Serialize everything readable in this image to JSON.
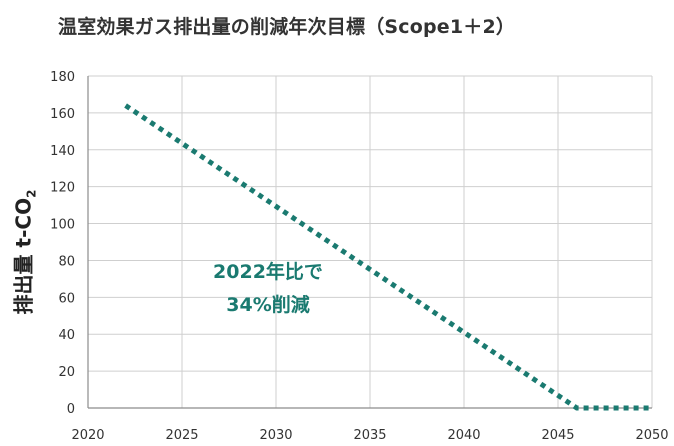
{
  "chart_data": {
    "type": "line",
    "title": "温室効果ガス排出量の削減年次目標（Scope1＋2）",
    "ylabel_main": "排出量 t-CO",
    "ylabel_sub": "2",
    "xlabel": "",
    "xlim": [
      2020,
      2050
    ],
    "ylim": [
      0,
      180
    ],
    "x_ticks": [
      2020,
      2025,
      2030,
      2035,
      2040,
      2045,
      2050
    ],
    "y_ticks": [
      0,
      20,
      40,
      60,
      80,
      100,
      120,
      140,
      160,
      180
    ],
    "grid": true,
    "series": [
      {
        "x": [
          2022,
          2046,
          2050
        ],
        "y": [
          164,
          0,
          0
        ],
        "style": "dotted",
        "color": "#1a7a70"
      }
    ],
    "annotations": [
      "2022年比で",
      "34%削減"
    ],
    "annotation_color": "#1a7a70"
  }
}
